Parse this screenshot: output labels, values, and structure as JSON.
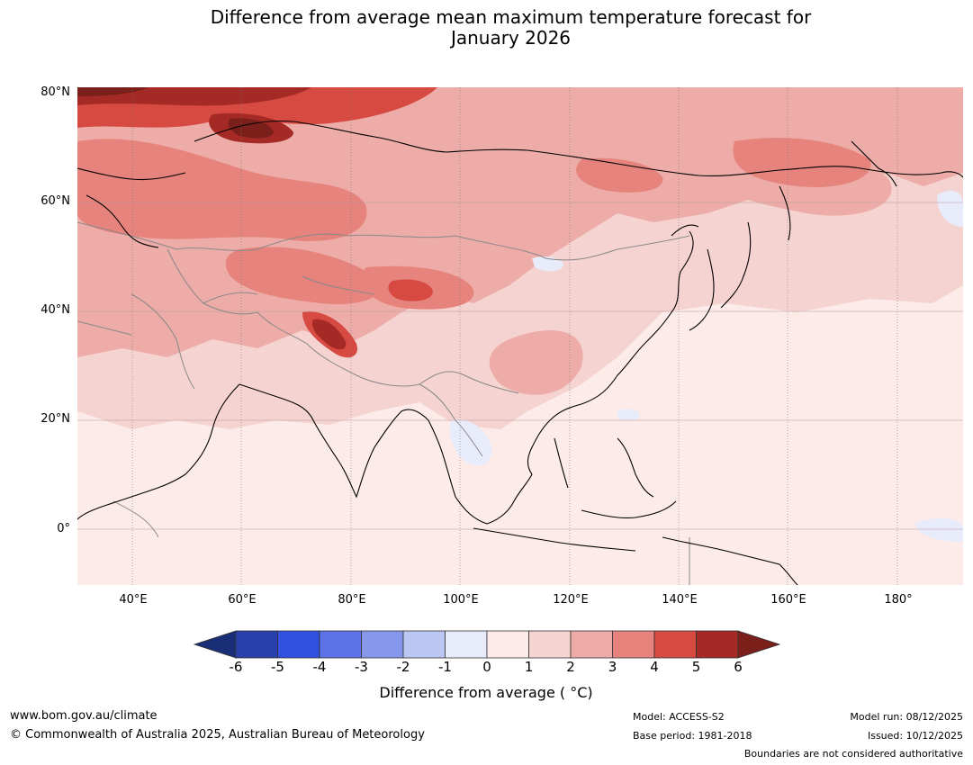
{
  "title": {
    "line1": "Difference from average mean maximum temperature forecast for",
    "line2": "January 2026"
  },
  "map": {
    "region": "Asia",
    "lat_labels": [
      "80°N",
      "60°N",
      "40°N",
      "20°N",
      "0°"
    ],
    "lon_labels": [
      "40°E",
      "60°E",
      "80°E",
      "100°E",
      "120°E",
      "140°E",
      "160°E",
      "180°"
    ],
    "extent": {
      "lon_min": 30,
      "lon_max": 192,
      "lat_min": -10,
      "lat_max": 80
    }
  },
  "colorbar": {
    "ticks": [
      "-6",
      "-5",
      "-4",
      "-3",
      "-2",
      "-1",
      "0",
      "1",
      "2",
      "3",
      "4",
      "5",
      "6"
    ],
    "colors": [
      "#1a2e78",
      "#2a3fae",
      "#3050e0",
      "#5d72e6",
      "#8798ec",
      "#bcc6f2",
      "#e8ebfa",
      "#fcebe9",
      "#f5d3d0",
      "#edaca8",
      "#e6837c",
      "#d64a42",
      "#a52a25",
      "#7b1f1a"
    ],
    "label": "Difference from average ( °C)"
  },
  "footer": {
    "url": "www.bom.gov.au/climate",
    "copyright": "© Commonwealth of Australia 2025, Australian Bureau of Meteorology",
    "model": "Model: ACCESS-S2",
    "base_period": "Base period: 1981-2018",
    "model_run": "Model run: 08/12/2025",
    "issued": "Issued: 10/12/2025",
    "disclaimer": "Boundaries are not considered authoritative"
  }
}
